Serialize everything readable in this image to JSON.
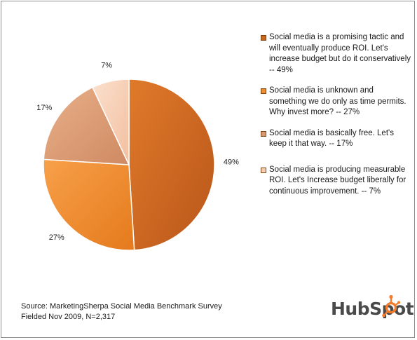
{
  "chart_data": {
    "type": "pie",
    "title": "",
    "slices": [
      {
        "value": 49,
        "label": "49%",
        "color": "#d2691e"
      },
      {
        "value": 27,
        "label": "27%",
        "color": "#f08c2e"
      },
      {
        "value": 17,
        "label": "17%",
        "color": "#d99a73"
      },
      {
        "value": 7,
        "label": "7%",
        "color": "#f7cfb5"
      }
    ],
    "legend_position": "right"
  },
  "legend": [
    {
      "text": "Social media is a promising tactic and will eventually produce ROI. Let's increase budget but do it conservatively -- 49%",
      "color": "#c9661c"
    },
    {
      "text": "Social media is unknown and something we do only as time permits. Why invest more? -- 27%",
      "color": "#f08c2e"
    },
    {
      "text": "Social media is basically free. Let's keep it that way.  -- 17%",
      "color": "#d99a73"
    },
    {
      "text": "Social media is producing measurable ROI. Let's Increase budget liberally for continuous improvement. -- 7%",
      "color": "#f7cfb5"
    }
  ],
  "source": {
    "line1": "Source: MarketingSherpa Social Media Benchmark Survey",
    "line2": "Fielded Nov 2009,  N=2,317"
  },
  "brand": {
    "name": "HubSpot",
    "color": "#f57b28"
  }
}
